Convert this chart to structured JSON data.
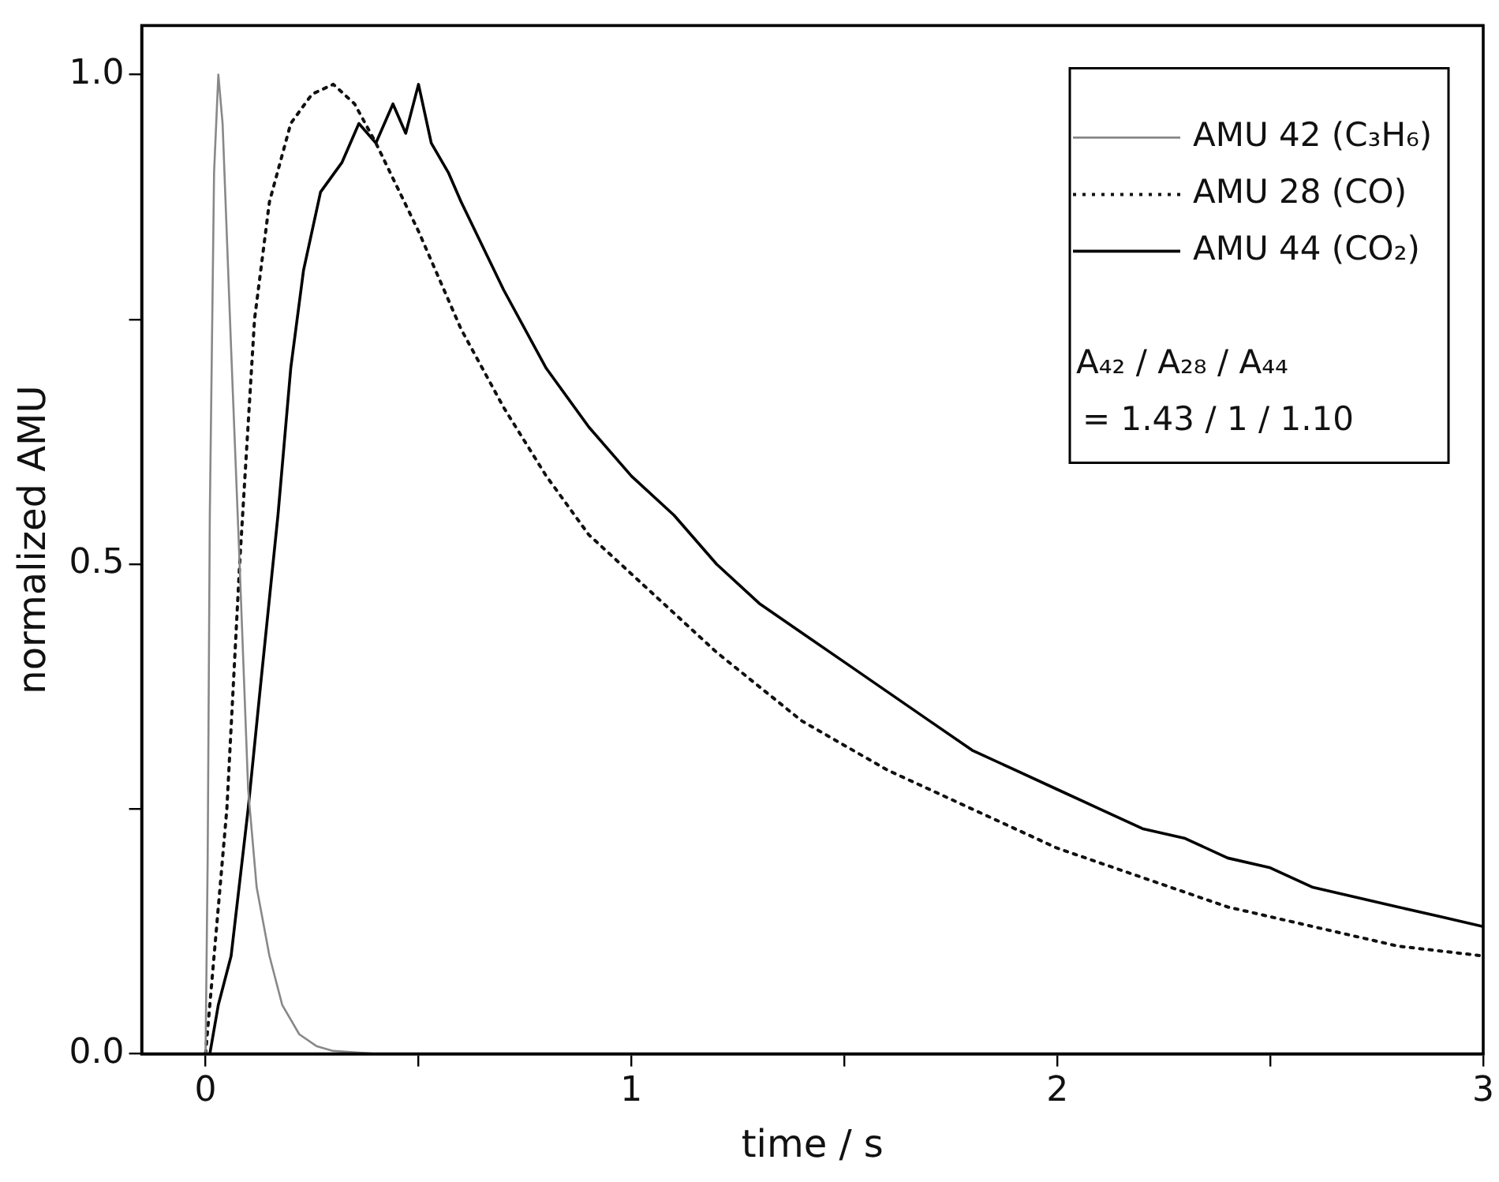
{
  "chart_data": {
    "type": "line",
    "xlabel": "time / s",
    "ylabel": "normalized AMU",
    "xlim": [
      -0.15,
      3
    ],
    "xticks": [
      0,
      {
        "value": 0.5,
        "label": null
      },
      1,
      {
        "value": 1.5,
        "label": null
      },
      2,
      {
        "value": 2.5,
        "label": null
      },
      3
    ],
    "ylim": [
      0,
      1.05
    ],
    "yticks": [
      {
        "value": 0,
        "label": "0.0"
      },
      {
        "value": 0.25,
        "label": null
      },
      {
        "value": 0.5,
        "label": "0.5"
      },
      {
        "value": 0.75,
        "label": null
      },
      {
        "value": 1,
        "label": "1.0"
      }
    ],
    "grid": false,
    "legend": "top right",
    "marker": "none",
    "annotations": [
      "A₄₂ / A₂₈ / A₄₄",
      "= 1.43 / 1 / 1.10"
    ],
    "series": [
      {
        "name": "AMU 42 (C₃H₆)",
        "color": "#888888",
        "line_style": "solid",
        "x": [
          0,
          0.005,
          0.01,
          0.02,
          0.03,
          0.04,
          0.06,
          0.08,
          0.1,
          0.12,
          0.15,
          0.18,
          0.22,
          0.26,
          0.3,
          0.4,
          1,
          2,
          3
        ],
        "values": [
          0,
          0.2,
          0.55,
          0.9,
          1.0,
          0.95,
          0.72,
          0.5,
          0.27,
          0.17,
          0.1,
          0.05,
          0.02,
          0.008,
          0.003,
          0,
          0,
          0,
          0
        ]
      },
      {
        "name": "AMU 28 (CO)",
        "color": "#111111",
        "line_style": "dotted",
        "x": [
          0,
          0.01,
          0.03,
          0.05,
          0.08,
          0.115,
          0.15,
          0.2,
          0.25,
          0.3,
          0.35,
          0.4,
          0.5,
          0.6,
          0.7,
          0.8,
          0.9,
          1,
          1.2,
          1.4,
          1.6,
          1.8,
          2,
          2.2,
          2.4,
          2.6,
          2.8,
          3
        ],
        "values": [
          0,
          0.05,
          0.15,
          0.25,
          0.5,
          0.75,
          0.87,
          0.95,
          0.98,
          0.99,
          0.97,
          0.93,
          0.84,
          0.74,
          0.66,
          0.59,
          0.53,
          0.49,
          0.41,
          0.34,
          0.29,
          0.25,
          0.21,
          0.18,
          0.15,
          0.13,
          0.11,
          0.1
        ]
      },
      {
        "name": "AMU 44 (CO₂)",
        "color": "#000000",
        "line_style": "solid",
        "x": [
          0.01,
          0.03,
          0.06,
          0.1,
          0.13,
          0.17,
          0.2,
          0.23,
          0.27,
          0.32,
          0.36,
          0.4,
          0.44,
          0.47,
          0.5,
          0.53,
          0.57,
          0.6,
          0.7,
          0.8,
          0.9,
          1,
          1.1,
          1.2,
          1.3,
          1.4,
          1.5,
          1.6,
          1.7,
          1.8,
          1.9,
          2,
          2.1,
          2.2,
          2.3,
          2.4,
          2.5,
          2.6,
          2.7,
          2.8,
          2.9,
          3
        ],
        "values": [
          0,
          0.05,
          0.1,
          0.25,
          0.38,
          0.55,
          0.7,
          0.8,
          0.88,
          0.91,
          0.95,
          0.93,
          0.97,
          0.94,
          0.99,
          0.93,
          0.9,
          0.87,
          0.78,
          0.7,
          0.64,
          0.59,
          0.55,
          0.5,
          0.46,
          0.43,
          0.4,
          0.37,
          0.34,
          0.31,
          0.29,
          0.27,
          0.25,
          0.23,
          0.22,
          0.2,
          0.19,
          0.17,
          0.16,
          0.15,
          0.14,
          0.13
        ]
      }
    ]
  }
}
